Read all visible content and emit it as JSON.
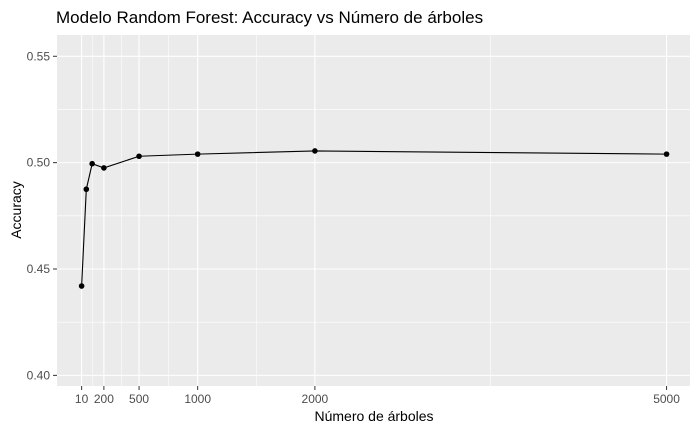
{
  "chart_data": {
    "type": "line",
    "title": "Modelo Random Forest: Accuracy vs Número de árboles",
    "xlabel": "Número de árboles",
    "ylabel": "Accuracy",
    "xlim": [
      -200,
      5200
    ],
    "ylim": [
      0.395,
      0.56
    ],
    "x_ticks": [
      10,
      200,
      500,
      1000,
      2000,
      5000
    ],
    "x_tick_labels": [
      "10",
      "200",
      "500",
      "1000",
      "2000",
      "5000"
    ],
    "y_ticks": [
      0.4,
      0.45,
      0.5,
      0.55
    ],
    "y_tick_labels": [
      "0.40",
      "0.45",
      "0.50",
      "0.55"
    ],
    "grid": true,
    "legend": "none",
    "series": [
      {
        "x": [
          10,
          50,
          100,
          200,
          500,
          1000,
          2000,
          5000
        ],
        "y": [
          0.442,
          0.4875,
          0.4995,
          0.4975,
          0.503,
          0.504,
          0.5055,
          0.504
        ]
      }
    ],
    "colors": {
      "panel": "#ebebeb",
      "grid_major": "#ffffff",
      "line": "#000000",
      "point": "#000000"
    }
  }
}
